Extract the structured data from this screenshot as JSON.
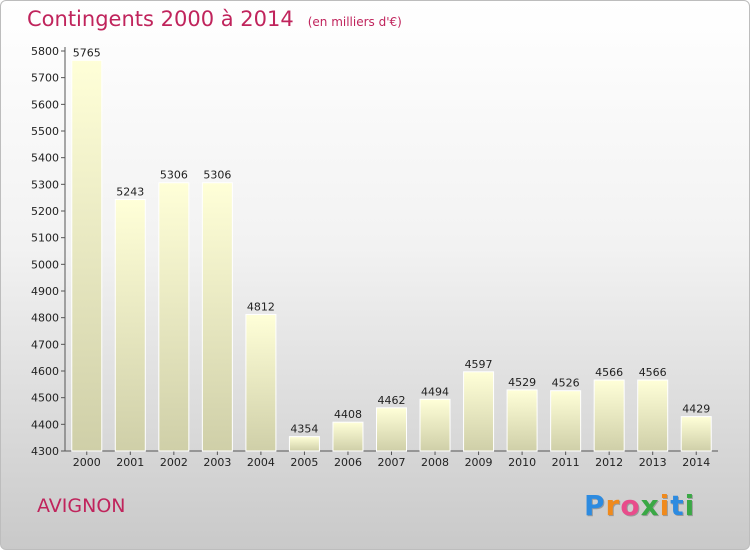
{
  "header": {
    "title": "Contingents 2000 à 2014",
    "subtitle": "(en milliers d'€)"
  },
  "footer": {
    "place": "AVIGNON",
    "logo": "Proxiti"
  },
  "colors": {
    "title": "#c0245c",
    "bar_top": "#ffffd8",
    "bar_bottom": "#cfcfa8"
  },
  "chart_data": {
    "type": "bar",
    "title": "Contingents 2000 à 2014",
    "subtitle": "(en milliers d'€)",
    "categories": [
      "2000",
      "2001",
      "2002",
      "2003",
      "2004",
      "2005",
      "2006",
      "2007",
      "2008",
      "2009",
      "2010",
      "2011",
      "2012",
      "2013",
      "2014"
    ],
    "values": [
      5765,
      5243,
      5306,
      5306,
      4812,
      4354,
      4408,
      4462,
      4494,
      4597,
      4529,
      4526,
      4566,
      4566,
      4429
    ],
    "ylim": [
      4300,
      5800
    ],
    "yticks": [
      4300,
      4400,
      4500,
      4600,
      4700,
      4800,
      4900,
      5000,
      5100,
      5200,
      5300,
      5400,
      5500,
      5600,
      5700,
      5800
    ],
    "grid": false
  }
}
